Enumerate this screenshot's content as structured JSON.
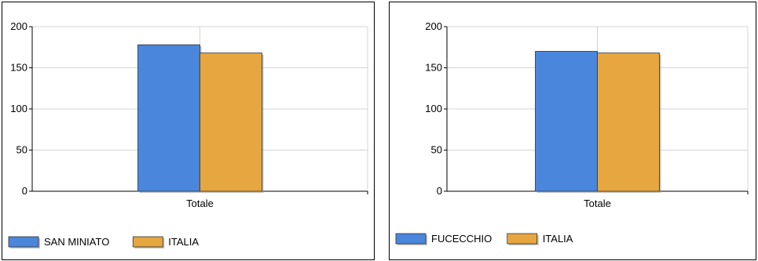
{
  "colors": {
    "series_a": "#4A86DB",
    "series_b": "#E6A640",
    "grid": "#D4D4D4",
    "axis": "#000000"
  },
  "chart_data": [
    {
      "type": "bar",
      "categories": [
        "Totale"
      ],
      "series": [
        {
          "name": "SAN MINIATO",
          "values": [
            178
          ]
        },
        {
          "name": "ITALIA",
          "values": [
            168
          ]
        }
      ],
      "ylim": [
        0,
        200
      ],
      "yticks": [
        0,
        50,
        100,
        150,
        200
      ],
      "grid": true,
      "legend": "bottom-left"
    },
    {
      "type": "bar",
      "categories": [
        "Totale"
      ],
      "series": [
        {
          "name": "FUCECCHIO",
          "values": [
            170
          ]
        },
        {
          "name": "ITALIA",
          "values": [
            168
          ]
        }
      ],
      "ylim": [
        0,
        200
      ],
      "yticks": [
        0,
        50,
        100,
        150,
        200
      ],
      "grid": true,
      "legend": "bottom-left"
    }
  ]
}
